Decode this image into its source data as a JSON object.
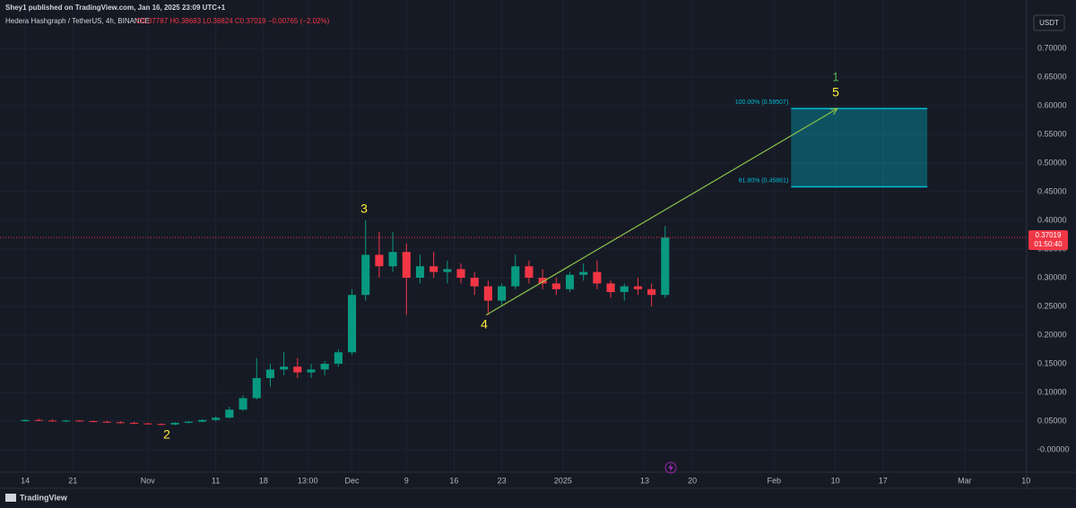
{
  "header": {
    "publisher": "Shey1 published on TradingView.com, Jan 16, 2025 23:09 UTC+1",
    "symbol": "Hedera Hashgraph / TetherUS, 4h, BINANCE",
    "ohlc": "O0.37787 H0.38683 L0.36824 C0.37019 −0.00765 (−2.02%)",
    "currency": "USDT",
    "brand": "TradingView"
  },
  "chart_data": {
    "type": "candlestick",
    "up_color": "#089981",
    "down_color": "#f23645",
    "grid": true,
    "x": [
      0,
      2,
      4,
      6,
      8,
      10,
      12,
      14,
      16,
      18,
      20,
      22,
      24,
      26,
      28,
      30,
      32,
      34,
      36,
      38,
      40,
      42,
      44,
      46,
      48,
      50,
      52,
      54,
      56,
      58,
      60,
      62,
      64,
      66,
      68,
      70,
      72,
      74,
      76,
      78,
      80,
      82,
      84,
      86,
      88,
      90,
      92,
      94
    ],
    "open": [
      0.05,
      0.052,
      0.051,
      0.05,
      0.051,
      0.05,
      0.049,
      0.048,
      0.047,
      0.046,
      0.045,
      0.044,
      0.047,
      0.049,
      0.052,
      0.056,
      0.07,
      0.09,
      0.125,
      0.14,
      0.145,
      0.135,
      0.14,
      0.15,
      0.17,
      0.27,
      0.34,
      0.32,
      0.345,
      0.3,
      0.32,
      0.31,
      0.315,
      0.3,
      0.285,
      0.26,
      0.285,
      0.32,
      0.3,
      0.29,
      0.28,
      0.305,
      0.31,
      0.29,
      0.275,
      0.285,
      0.28,
      0.27
    ],
    "high": [
      0.053,
      0.054,
      0.053,
      0.052,
      0.052,
      0.051,
      0.051,
      0.05,
      0.049,
      0.047,
      0.046,
      0.048,
      0.05,
      0.053,
      0.058,
      0.075,
      0.095,
      0.16,
      0.15,
      0.17,
      0.16,
      0.15,
      0.155,
      0.175,
      0.28,
      0.4,
      0.38,
      0.38,
      0.36,
      0.34,
      0.345,
      0.33,
      0.325,
      0.31,
      0.295,
      0.29,
      0.34,
      0.33,
      0.315,
      0.3,
      0.31,
      0.325,
      0.33,
      0.295,
      0.29,
      0.3,
      0.29,
      0.39
    ],
    "low": [
      0.049,
      0.05,
      0.049,
      0.048,
      0.049,
      0.048,
      0.047,
      0.046,
      0.045,
      0.044,
      0.043,
      0.043,
      0.046,
      0.048,
      0.05,
      0.055,
      0.068,
      0.088,
      0.11,
      0.13,
      0.125,
      0.125,
      0.13,
      0.145,
      0.165,
      0.26,
      0.3,
      0.31,
      0.235,
      0.29,
      0.3,
      0.29,
      0.29,
      0.27,
      0.235,
      0.25,
      0.28,
      0.29,
      0.28,
      0.27,
      0.275,
      0.295,
      0.28,
      0.265,
      0.26,
      0.27,
      0.25,
      0.265
    ],
    "close": [
      0.052,
      0.051,
      0.05,
      0.051,
      0.05,
      0.049,
      0.048,
      0.047,
      0.046,
      0.045,
      0.044,
      0.047,
      0.049,
      0.052,
      0.056,
      0.07,
      0.09,
      0.125,
      0.14,
      0.145,
      0.135,
      0.14,
      0.15,
      0.17,
      0.27,
      0.34,
      0.32,
      0.345,
      0.3,
      0.32,
      0.31,
      0.315,
      0.3,
      0.285,
      0.26,
      0.285,
      0.32,
      0.3,
      0.29,
      0.28,
      0.305,
      0.31,
      0.29,
      0.275,
      0.285,
      0.28,
      0.27,
      0.37
    ],
    "xlim": [
      -3.7,
      147.1
    ],
    "xticks": [
      {
        "value": 0,
        "label": "14"
      },
      {
        "value": 7,
        "label": "21"
      },
      {
        "value": 18,
        "label": "Nov"
      },
      {
        "value": 28,
        "label": "11"
      },
      {
        "value": 35,
        "label": "18"
      },
      {
        "value": 41.5,
        "label": "13:00"
      },
      {
        "value": 48,
        "label": "Dec"
      },
      {
        "value": 56,
        "label": "9"
      },
      {
        "value": 63,
        "label": "16"
      },
      {
        "value": 70,
        "label": "23"
      },
      {
        "value": 79,
        "label": "2025"
      },
      {
        "value": 91,
        "label": "13"
      },
      {
        "value": 98,
        "label": "20"
      },
      {
        "value": 110,
        "label": "Feb"
      },
      {
        "value": 119,
        "label": "10"
      },
      {
        "value": 126,
        "label": "17"
      },
      {
        "value": 138,
        "label": "Mar"
      },
      {
        "value": 147,
        "label": "10"
      }
    ],
    "ylim": [
      -0.039,
      0.753
    ],
    "yticks": [
      {
        "value": 0.7,
        "label": "0.70000"
      },
      {
        "value": 0.65,
        "label": "0.65000"
      },
      {
        "value": 0.6,
        "label": "0.60000"
      },
      {
        "value": 0.55,
        "label": "0.55000"
      },
      {
        "value": 0.5,
        "label": "0.50000"
      },
      {
        "value": 0.45,
        "label": "0.45000"
      },
      {
        "value": 0.4,
        "label": "0.40000"
      },
      {
        "value": 0.35,
        "label": "0.35000"
      },
      {
        "value": 0.3,
        "label": "0.30000"
      },
      {
        "value": 0.25,
        "label": "0.25000"
      },
      {
        "value": 0.2,
        "label": "0.20000"
      },
      {
        "value": 0.15,
        "label": "0.15000"
      },
      {
        "value": 0.1,
        "label": "0.10000"
      },
      {
        "value": 0.05,
        "label": "0.05000"
      },
      {
        "value": 0,
        "label": "-0.00000"
      }
    ],
    "last_price": 0.37019,
    "countdown": "01:50:40",
    "fib": {
      "x": [
        112.5,
        132.5
      ],
      "top": {
        "value": 0.59507,
        "label": "100.00% (0.59507)"
      },
      "bottom": {
        "value": 0.45861,
        "label": "61.80% (0.45861)"
      }
    },
    "arrow": {
      "x": [
        67.7,
        119.3
      ],
      "y": [
        0.235,
        0.595
      ]
    },
    "waves": [
      "1",
      "5",
      "3",
      "4",
      "2"
    ]
  }
}
